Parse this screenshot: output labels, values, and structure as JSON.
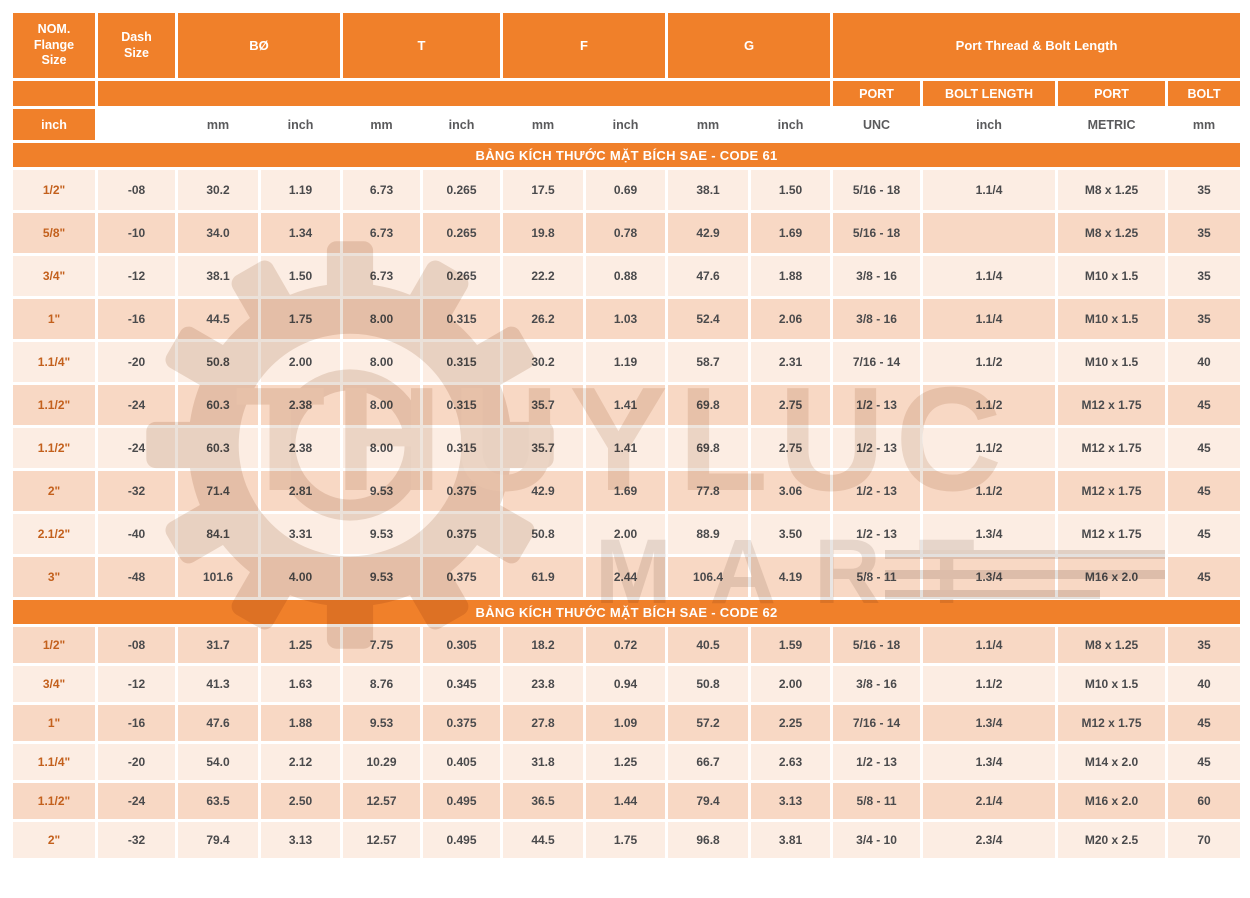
{
  "colors": {
    "orange": "#F0802A",
    "row_light": "#FCEDE3",
    "row_dark": "#F8D8C4",
    "first_col_text": "#C3601C",
    "cell_text": "#4A4A4C"
  },
  "header": {
    "groups": [
      {
        "label": "NOM.\nFlange\nSize"
      },
      {
        "label": "Dash\nSize"
      },
      {
        "label": "BØ"
      },
      {
        "label": "T"
      },
      {
        "label": "F"
      },
      {
        "label": "G"
      },
      {
        "label": "Port Thread & Bolt Length"
      }
    ],
    "subheaders": [
      "PORT",
      "BOLT LENGTH",
      "PORT",
      "BOLT"
    ],
    "units": [
      "inch",
      "",
      "mm",
      "inch",
      "mm",
      "inch",
      "mm",
      "inch",
      "mm",
      "inch",
      "UNC",
      "inch",
      "METRIC",
      "mm"
    ]
  },
  "sections": [
    {
      "title": "BẢNG KÍCH THƯỚC MẶT BÍCH SAE - CODE 61",
      "rows": [
        [
          "1/2\"",
          "-08",
          "30.2",
          "1.19",
          "6.73",
          "0.265",
          "17.5",
          "0.69",
          "38.1",
          "1.50",
          "5/16 - 18",
          "1.1/4",
          "M8 x 1.25",
          "35"
        ],
        [
          "5/8\"",
          "-10",
          "34.0",
          "1.34",
          "6.73",
          "0.265",
          "19.8",
          "0.78",
          "42.9",
          "1.69",
          "5/16 - 18",
          "",
          "M8 x 1.25",
          "35"
        ],
        [
          "3/4\"",
          "-12",
          "38.1",
          "1.50",
          "6.73",
          "0.265",
          "22.2",
          "0.88",
          "47.6",
          "1.88",
          "3/8 - 16",
          "1.1/4",
          "M10 x 1.5",
          "35"
        ],
        [
          "1\"",
          "-16",
          "44.5",
          "1.75",
          "8.00",
          "0.315",
          "26.2",
          "1.03",
          "52.4",
          "2.06",
          "3/8 - 16",
          "1.1/4",
          "M10 x 1.5",
          "35"
        ],
        [
          "1.1/4\"",
          "-20",
          "50.8",
          "2.00",
          "8.00",
          "0.315",
          "30.2",
          "1.19",
          "58.7",
          "2.31",
          "7/16 - 14",
          "1.1/2",
          "M10 x 1.5",
          "40"
        ],
        [
          "1.1/2\"",
          "-24",
          "60.3",
          "2.38",
          "8.00",
          "0.315",
          "35.7",
          "1.41",
          "69.8",
          "2.75",
          "1/2 - 13",
          "1.1/2",
          "M12 x 1.75",
          "45"
        ],
        [
          "1.1/2\"",
          "-24",
          "60.3",
          "2.38",
          "8.00",
          "0.315",
          "35.7",
          "1.41",
          "69.8",
          "2.75",
          "1/2 - 13",
          "1.1/2",
          "M12 x 1.75",
          "45"
        ],
        [
          "2\"",
          "-32",
          "71.4",
          "2.81",
          "9.53",
          "0.375",
          "42.9",
          "1.69",
          "77.8",
          "3.06",
          "1/2 - 13",
          "1.1/2",
          "M12 x 1.75",
          "45"
        ],
        [
          "2.1/2\"",
          "-40",
          "84.1",
          "3.31",
          "9.53",
          "0.375",
          "50.8",
          "2.00",
          "88.9",
          "3.50",
          "1/2 - 13",
          "1.3/4",
          "M12 x 1.75",
          "45"
        ],
        [
          "3\"",
          "-48",
          "101.6",
          "4.00",
          "9.53",
          "0.375",
          "61.9",
          "2.44",
          "106.4",
          "4.19",
          "5/8 - 11",
          "1.3/4",
          "M16 x 2.0",
          "45"
        ]
      ]
    },
    {
      "title": "BẢNG KÍCH THƯỚC MẶT BÍCH SAE - CODE 62",
      "rows": [
        [
          "1/2\"",
          "-08",
          "31.7",
          "1.25",
          "7.75",
          "0.305",
          "18.2",
          "0.72",
          "40.5",
          "1.59",
          "5/16 - 18",
          "1.1/4",
          "M8 x 1.25",
          "35"
        ],
        [
          "3/4\"",
          "-12",
          "41.3",
          "1.63",
          "8.76",
          "0.345",
          "23.8",
          "0.94",
          "50.8",
          "2.00",
          "3/8 - 16",
          "1.1/2",
          "M10 x 1.5",
          "40"
        ],
        [
          "1\"",
          "-16",
          "47.6",
          "1.88",
          "9.53",
          "0.375",
          "27.8",
          "1.09",
          "57.2",
          "2.25",
          "7/16 - 14",
          "1.3/4",
          "M12 x 1.75",
          "45"
        ],
        [
          "1.1/4\"",
          "-20",
          "54.0",
          "2.12",
          "10.29",
          "0.405",
          "31.8",
          "1.25",
          "66.7",
          "2.63",
          "1/2 - 13",
          "1.3/4",
          "M14 x 2.0",
          "45"
        ],
        [
          "1.1/2\"",
          "-24",
          "63.5",
          "2.50",
          "12.57",
          "0.495",
          "36.5",
          "1.44",
          "79.4",
          "3.13",
          "5/8 - 11",
          "2.1/4",
          "M16 x 2.0",
          "60"
        ],
        [
          "2\"",
          "-32",
          "79.4",
          "3.13",
          "12.57",
          "0.495",
          "44.5",
          "1.75",
          "96.8",
          "3.81",
          "3/4 - 10",
          "2.3/4",
          "M20 x 2.5",
          "70"
        ]
      ]
    }
  ],
  "watermark": {
    "brand": "THUYLUC",
    "sub": "MART"
  }
}
